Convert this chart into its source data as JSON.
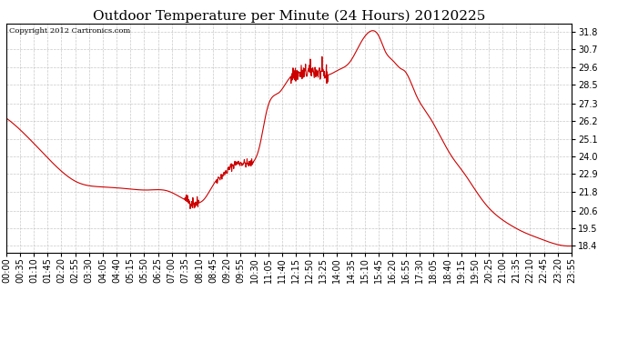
{
  "title": "Outdoor Temperature per Minute (24 Hours) 20120225",
  "copyright_text": "Copyright 2012 Cartronics.com",
  "line_color": "#cc0000",
  "bg_color": "#ffffff",
  "plot_bg_color": "#ffffff",
  "grid_color": "#bbbbbb",
  "yticks": [
    18.4,
    19.5,
    20.6,
    21.8,
    22.9,
    24.0,
    25.1,
    26.2,
    27.3,
    28.5,
    29.6,
    30.7,
    31.8
  ],
  "ylim": [
    18.0,
    32.3
  ],
  "title_fontsize": 11,
  "tick_fontsize": 7,
  "line_width": 0.8,
  "xtick_labels": [
    "00:00",
    "00:35",
    "01:10",
    "01:45",
    "02:20",
    "02:55",
    "03:30",
    "04:05",
    "04:40",
    "05:15",
    "05:50",
    "06:25",
    "07:00",
    "07:35",
    "08:10",
    "08:45",
    "09:20",
    "09:55",
    "10:30",
    "11:05",
    "11:40",
    "12:15",
    "12:50",
    "13:25",
    "14:00",
    "14:35",
    "15:10",
    "15:45",
    "16:20",
    "16:55",
    "17:30",
    "18:05",
    "18:40",
    "19:15",
    "19:50",
    "20:25",
    "21:00",
    "21:35",
    "22:10",
    "22:45",
    "23:20",
    "23:55"
  ],
  "key_t": [
    0,
    55,
    110,
    180,
    240,
    300,
    360,
    410,
    455,
    475,
    505,
    535,
    555,
    575,
    595,
    615,
    645,
    665,
    695,
    725,
    755,
    785,
    815,
    845,
    875,
    905,
    925,
    950,
    965,
    985,
    1005,
    1015,
    1045,
    1075,
    1105,
    1135,
    1165,
    1195,
    1225,
    1255,
    1285,
    1315,
    1355,
    1395,
    1440
  ],
  "key_v": [
    26.4,
    25.2,
    23.8,
    22.4,
    22.1,
    22.0,
    21.9,
    21.85,
    21.3,
    21.1,
    21.35,
    22.5,
    22.9,
    23.4,
    23.6,
    23.55,
    24.6,
    27.0,
    28.0,
    29.0,
    29.2,
    29.35,
    29.1,
    29.4,
    29.9,
    31.2,
    31.8,
    31.5,
    30.6,
    30.0,
    29.5,
    29.35,
    27.8,
    26.6,
    25.3,
    24.0,
    23.0,
    21.9,
    20.9,
    20.2,
    19.7,
    19.3,
    18.9,
    18.55,
    18.4
  ]
}
